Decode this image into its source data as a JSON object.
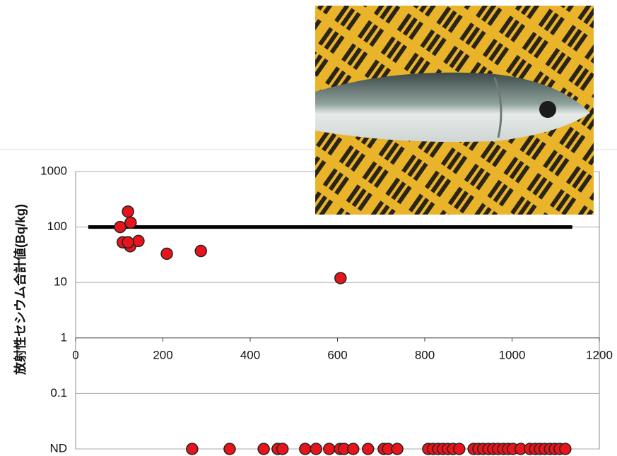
{
  "chart_data": {
    "type": "scatter",
    "y_label": "放射性セシウム合計値(Bq/kg)",
    "log_y": true,
    "grid": true,
    "xlim": [
      0,
      1200
    ],
    "xticks": [
      0,
      200,
      400,
      600,
      800,
      1000,
      1200
    ],
    "ylim": [
      0.01,
      1000
    ],
    "yticks": [
      1000,
      100,
      10,
      1,
      0.1,
      {
        "value": 0.01,
        "label": "ND"
      }
    ],
    "series": [
      {
        "mode": "points",
        "color": "#e8141b",
        "x": [
          102,
          120,
          126,
          108,
          125,
          144,
          120,
          209,
          287,
          607
        ],
        "values": [
          100,
          190,
          120,
          53,
          45,
          56,
          53,
          33,
          37,
          12
        ]
      },
      {
        "mode": "points",
        "color": "#e8141b",
        "x": [
          267,
          353,
          431,
          463,
          474,
          526,
          551,
          581,
          606,
          615,
          636,
          670,
          706,
          716,
          737,
          808,
          819,
          831,
          842,
          853,
          865,
          879,
          912,
          923,
          934,
          946,
          957,
          968,
          980,
          991,
          1002,
          1020,
          1041,
          1053,
          1064,
          1075,
          1087,
          1098,
          1109,
          1122
        ],
        "values": [
          0.01,
          0.01,
          0.01,
          0.01,
          0.01,
          0.01,
          0.01,
          0.01,
          0.01,
          0.01,
          0.01,
          0.01,
          0.01,
          0.01,
          0.01,
          0.01,
          0.01,
          0.01,
          0.01,
          0.01,
          0.01,
          0.01,
          0.01,
          0.01,
          0.01,
          0.01,
          0.01,
          0.01,
          0.01,
          0.01,
          0.01,
          0.01,
          0.01,
          0.01,
          0.01,
          0.01,
          0.01,
          0.01,
          0.01,
          0.01
        ]
      },
      {
        "mode": "line",
        "color": "#000000",
        "x": [
          29,
          1138
        ],
        "values": [
          100,
          100
        ]
      }
    ]
  }
}
